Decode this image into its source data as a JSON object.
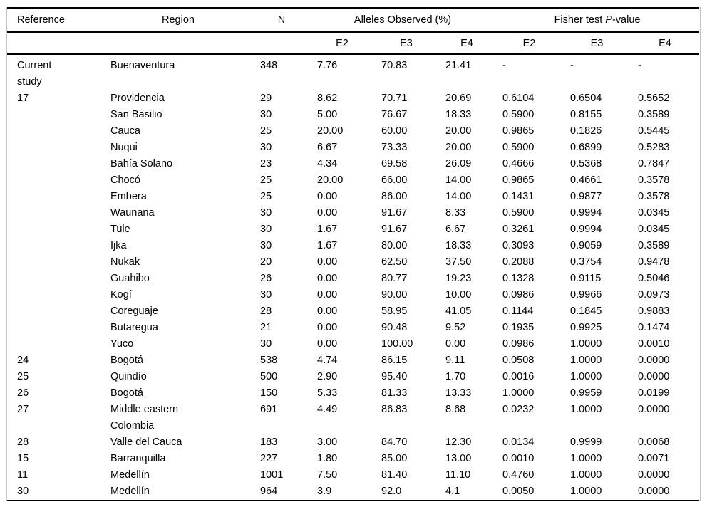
{
  "table": {
    "headers": {
      "reference": "Reference",
      "region": "Region",
      "n": "N",
      "alleles_observed": "Alleles Observed (%)",
      "fisher_prefix": "Fisher test ",
      "fisher_italic": "P",
      "fisher_suffix": "-value",
      "sub_alleles": [
        "E2",
        "E3",
        "E4"
      ],
      "sub_fisher": [
        "E2",
        "E3",
        "E4"
      ]
    },
    "rows": [
      {
        "reference": "Current\nstudy",
        "region": "Buenaventura",
        "n": "348",
        "alleles": [
          "7.76",
          "70.83",
          "21.41"
        ],
        "fisher": [
          "-",
          "-",
          "-"
        ]
      },
      {
        "reference": "17",
        "region": "Providencia",
        "n": "29",
        "alleles": [
          "8.62",
          "70.71",
          "20.69"
        ],
        "fisher": [
          "0.6104",
          "0.6504",
          "0.5652"
        ]
      },
      {
        "reference": "",
        "region": "San Basilio",
        "n": "30",
        "alleles": [
          "5.00",
          "76.67",
          "18.33"
        ],
        "fisher": [
          "0.5900",
          "0.8155",
          "0.3589"
        ]
      },
      {
        "reference": "",
        "region": "Cauca",
        "n": "25",
        "alleles": [
          "20.00",
          "60.00",
          "20.00"
        ],
        "fisher": [
          "0.9865",
          "0.1826",
          "0.5445"
        ]
      },
      {
        "reference": "",
        "region": "Nuqui",
        "n": "30",
        "alleles": [
          "6.67",
          "73.33",
          "20.00"
        ],
        "fisher": [
          "0.5900",
          "0.6899",
          "0.5283"
        ]
      },
      {
        "reference": "",
        "region": "Bahía Solano",
        "n": "23",
        "alleles": [
          "4.34",
          "69.58",
          "26.09"
        ],
        "fisher": [
          "0.4666",
          "0.5368",
          "0.7847"
        ]
      },
      {
        "reference": "",
        "region": "Chocó",
        "n": "25",
        "alleles": [
          "20.00",
          "66.00",
          "14.00"
        ],
        "fisher": [
          "0.9865",
          "0.4661",
          "0.3578"
        ]
      },
      {
        "reference": "",
        "region": "Embera",
        "n": "25",
        "alleles": [
          "0.00",
          "86.00",
          "14.00"
        ],
        "fisher": [
          "0.1431",
          "0.9877",
          "0.3578"
        ]
      },
      {
        "reference": "",
        "region": "Waunana",
        "n": "30",
        "alleles": [
          "0.00",
          "91.67",
          "8.33"
        ],
        "fisher": [
          "0.5900",
          "0.9994",
          "0.0345"
        ]
      },
      {
        "reference": "",
        "region": "Tule",
        "n": "30",
        "alleles": [
          "1.67",
          "91.67",
          "6.67"
        ],
        "fisher": [
          "0.3261",
          "0.9994",
          "0.0345"
        ]
      },
      {
        "reference": "",
        "region": "Ijka",
        "n": "30",
        "alleles": [
          "1.67",
          "80.00",
          "18.33"
        ],
        "fisher": [
          "0.3093",
          "0.9059",
          "0.3589"
        ]
      },
      {
        "reference": "",
        "region": "Nukak",
        "n": "20",
        "alleles": [
          "0.00",
          "62.50",
          "37.50"
        ],
        "fisher": [
          "0.2088",
          "0.3754",
          "0.9478"
        ]
      },
      {
        "reference": "",
        "region": "Guahibo",
        "n": "26",
        "alleles": [
          "0.00",
          "80.77",
          "19.23"
        ],
        "fisher": [
          "0.1328",
          "0.9115",
          "0.5046"
        ]
      },
      {
        "reference": "",
        "region": "Kogí",
        "n": "30",
        "alleles": [
          "0.00",
          "90.00",
          "10.00"
        ],
        "fisher": [
          "0.0986",
          "0.9966",
          "0.0973"
        ]
      },
      {
        "reference": "",
        "region": "Coreguaje",
        "n": "28",
        "alleles": [
          "0.00",
          "58.95",
          "41.05"
        ],
        "fisher": [
          "0.1144",
          "0.1845",
          "0.9883"
        ]
      },
      {
        "reference": "",
        "region": "Butaregua",
        "n": "21",
        "alleles": [
          "0.00",
          "90.48",
          "9.52"
        ],
        "fisher": [
          "0.1935",
          "0.9925",
          "0.1474"
        ]
      },
      {
        "reference": "",
        "region": "Yuco",
        "n": "30",
        "alleles": [
          "0.00",
          "100.00",
          "0.00"
        ],
        "fisher": [
          "0.0986",
          "1.0000",
          "0.0010"
        ]
      },
      {
        "reference": "24",
        "region": "Bogotá",
        "n": "538",
        "alleles": [
          "4.74",
          "86.15",
          "9.11"
        ],
        "fisher": [
          "0.0508",
          "1.0000",
          "0.0000"
        ]
      },
      {
        "reference": "25",
        "region": "Quindío",
        "n": "500",
        "alleles": [
          "2.90",
          "95.40",
          "1.70"
        ],
        "fisher": [
          "0.0016",
          "1.0000",
          "0.0000"
        ]
      },
      {
        "reference": "26",
        "region": "Bogotá",
        "n": "150",
        "alleles": [
          "5.33",
          "81.33",
          "13.33"
        ],
        "fisher": [
          "1.0000",
          "0.9959",
          "0.0199"
        ]
      },
      {
        "reference": "27",
        "region": "Middle eastern\nColombia",
        "n": "691",
        "alleles": [
          "4.49",
          "86.83",
          "8.68"
        ],
        "fisher": [
          "0.0232",
          "1.0000",
          "0.0000"
        ]
      },
      {
        "reference": "28",
        "region": "Valle del Cauca",
        "n": "183",
        "alleles": [
          "3.00",
          "84.70",
          "12.30"
        ],
        "fisher": [
          "0.0134",
          "0.9999",
          "0.0068"
        ]
      },
      {
        "reference": "15",
        "region": "Barranquilla",
        "n": "227",
        "alleles": [
          "1.80",
          "85.00",
          "13.00"
        ],
        "fisher": [
          "0.0010",
          "1.0000",
          "0.0071"
        ]
      },
      {
        "reference": "11",
        "region": "Medellín",
        "n": "1001",
        "alleles": [
          "7.50",
          "81.40",
          "11.10"
        ],
        "fisher": [
          "0.4760",
          "1.0000",
          "0.0000"
        ]
      },
      {
        "reference": "30",
        "region": "Medellín",
        "n": "964",
        "alleles": [
          "3.9",
          "92.0",
          "4.1"
        ],
        "fisher": [
          "0.0050",
          "1.0000",
          "0.0000"
        ]
      }
    ]
  }
}
